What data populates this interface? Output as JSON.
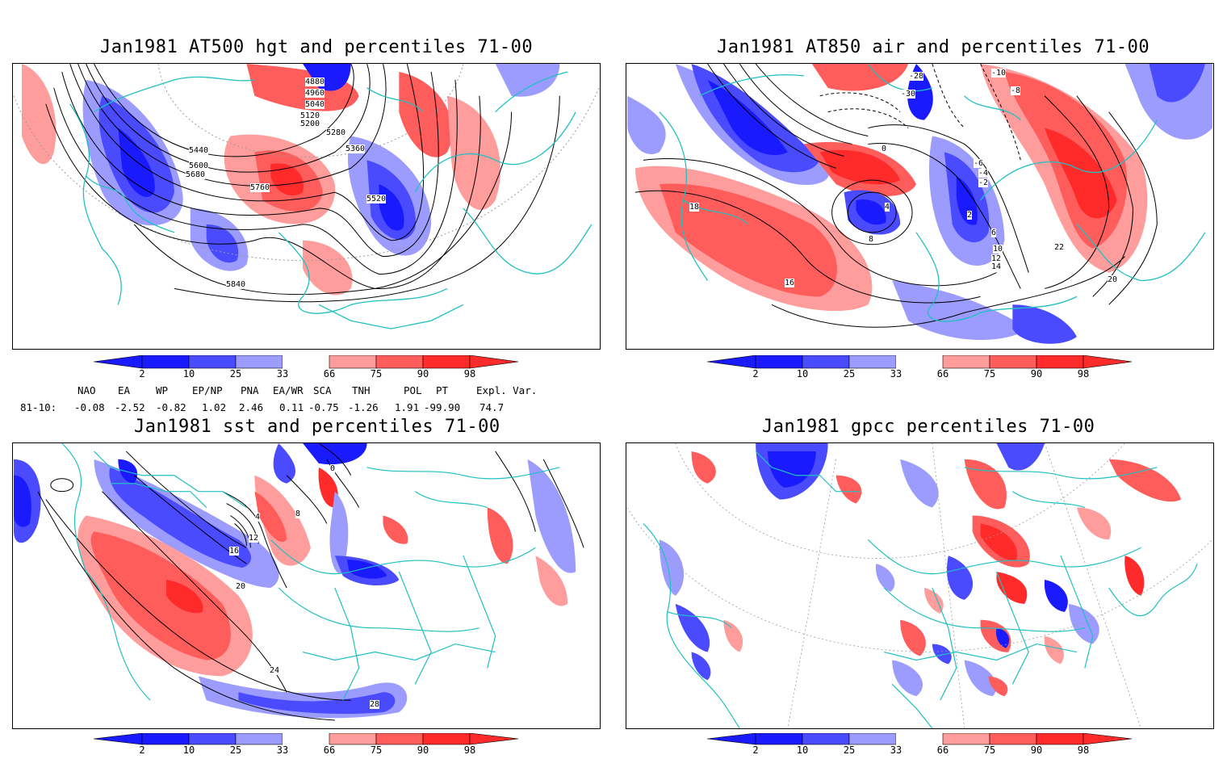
{
  "panels": [
    {
      "title": "Jan1981 AT500 hgt and percentiles 71-00",
      "contour_labels": [
        "4880",
        "4960",
        "5040",
        "5120",
        "5200",
        "5280",
        "5360",
        "5440",
        "5520",
        "5600",
        "5680",
        "5760",
        "5840"
      ]
    },
    {
      "title": "Jan1981 AT850 air and percentiles 71-00",
      "contour_labels": [
        "-28",
        "-30",
        "-10",
        "-8",
        "-6",
        "-4",
        "-2",
        "0",
        "2",
        "4",
        "6",
        "8",
        "10",
        "12",
        "14",
        "16",
        "18",
        "20",
        "22"
      ]
    },
    {
      "title": "Jan1981 sst and percentiles 71-00",
      "contour_labels": [
        "0",
        "4",
        "8",
        "12",
        "16",
        "20",
        "24",
        "28"
      ]
    },
    {
      "title": "Jan1981 gpcc percentiles 71-00",
      "contour_labels": []
    }
  ],
  "colorbar": {
    "ticks": [
      "2",
      "10",
      "25",
      "33",
      "66",
      "75",
      "90",
      "98"
    ],
    "colors": {
      "blue_dark": "#1a1aff",
      "blue_mid": "#4a4aff",
      "blue_light": "#9c9cff",
      "white": "#ffffff",
      "red_light": "#ff9c9c",
      "red_mid": "#ff5c5c",
      "red_dark": "#ff2a2a"
    }
  },
  "indices": {
    "headers": [
      "NAO",
      "EA",
      "WP",
      "EP/NP",
      "PNA",
      "EA/WR",
      "SCA",
      "TNH",
      "POL",
      "PT",
      "Expl. Var."
    ],
    "row_label": "81-10:",
    "values": [
      "-0.08",
      "-2.52",
      "-0.82",
      "1.02",
      "2.46",
      "0.11",
      "-0.75",
      "-1.26",
      "1.91",
      "-99.90",
      "74.7"
    ]
  },
  "colors": {
    "coastline": "#20c0c0",
    "contour": "#000000",
    "grid": "#999999"
  }
}
